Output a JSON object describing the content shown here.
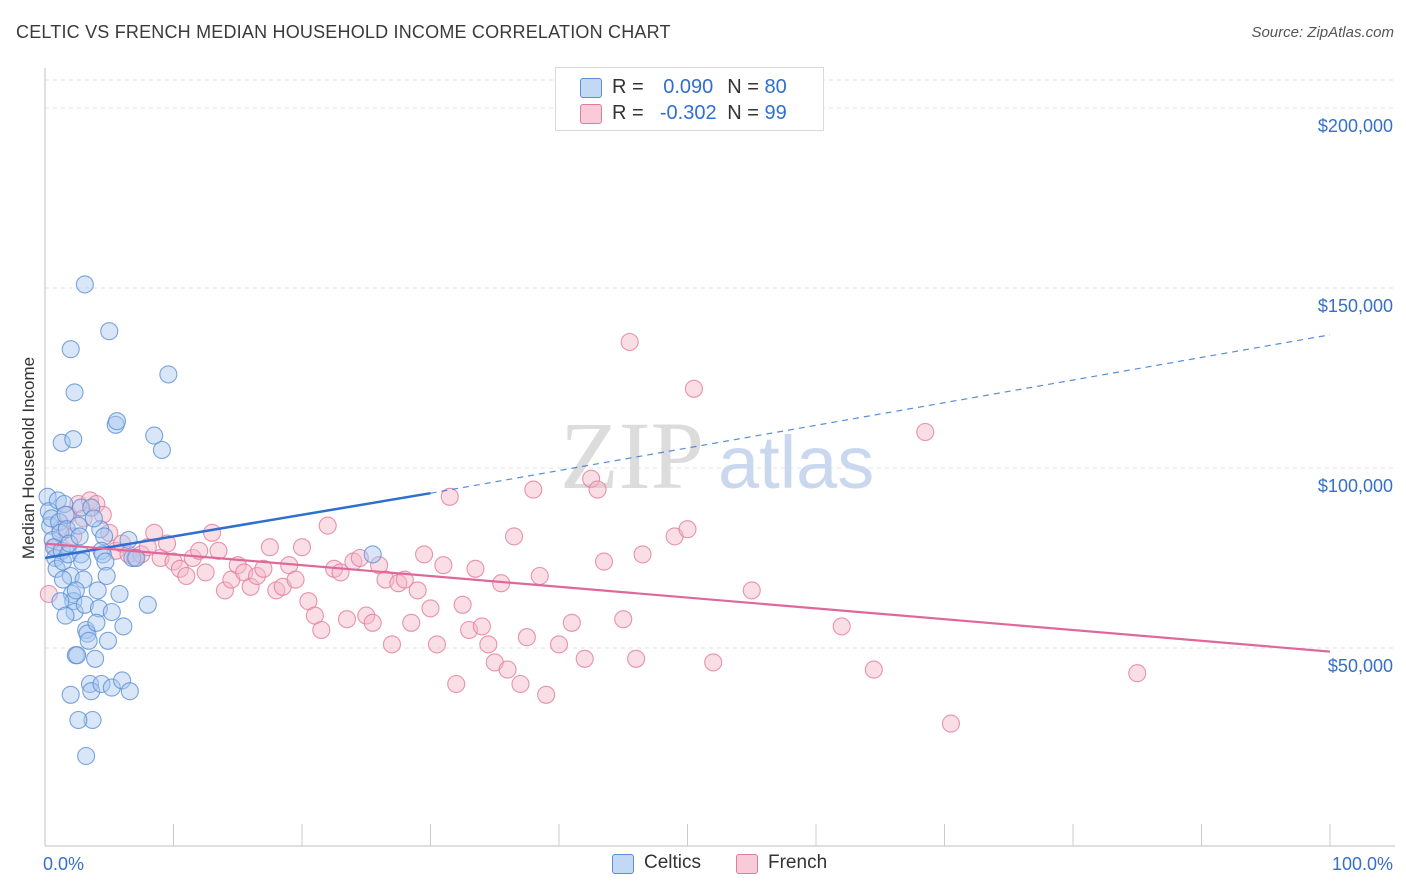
{
  "header": {
    "title": "CELTIC VS FRENCH MEDIAN HOUSEHOLD INCOME CORRELATION CHART",
    "source": "Source: ZipAtlas.com"
  },
  "watermark": {
    "zip": "ZIP",
    "atlas": "atlas"
  },
  "legend": {
    "rows": [
      {
        "r_label": "R =",
        "r_value": "0.090",
        "n_label": "N =",
        "n_value": "80",
        "color": "#a9c8f0"
      },
      {
        "r_label": "R =",
        "r_value": "-0.302",
        "n_label": "N =",
        "n_value": "99",
        "color": "#f5b5c8"
      }
    ]
  },
  "bottom_legend": {
    "items": [
      "Celtics",
      "French"
    ]
  },
  "colors": {
    "celtics_fill": "#a9c8f0",
    "celtics_stroke": "#5b8fd6",
    "celtics_line": "#2f6fd0",
    "french_fill": "#f5b5c8",
    "french_stroke": "#e27a9c",
    "french_line": "#e0679a",
    "tick_text": "#3570c8",
    "grid": "#e2e2e2"
  },
  "chart_data": {
    "type": "scatter",
    "title": "CELTIC VS FRENCH MEDIAN HOUSEHOLD INCOME CORRELATION CHART",
    "xlabel": "",
    "ylabel": "Median Household Income",
    "xlim": [
      0,
      100
    ],
    "ylim": [
      0,
      210000
    ],
    "x_tick_labels": [
      "0.0%",
      "100.0%"
    ],
    "y_ticks": [
      50000,
      100000,
      150000,
      200000
    ],
    "y_tick_labels": [
      "$50,000",
      "$100,000",
      "$150,000",
      "$200,000"
    ],
    "grid": true,
    "legend_position": "top-center",
    "series": [
      {
        "name": "Celtics",
        "r": 0.09,
        "n": 80,
        "trend": {
          "x": [
            0,
            30
          ],
          "y": [
            75000,
            93000
          ],
          "dashed_to": [
            100,
            137000
          ]
        },
        "points": [
          [
            0.2,
            92000
          ],
          [
            0.3,
            88000
          ],
          [
            0.4,
            84000
          ],
          [
            0.5,
            86000
          ],
          [
            0.6,
            80000
          ],
          [
            0.7,
            78000
          ],
          [
            0.8,
            75000
          ],
          [
            0.9,
            72000
          ],
          [
            1.0,
            91000
          ],
          [
            1.1,
            85000
          ],
          [
            1.2,
            82000
          ],
          [
            1.3,
            77000
          ],
          [
            1.4,
            74000
          ],
          [
            1.5,
            90000
          ],
          [
            1.6,
            87000
          ],
          [
            1.7,
            83000
          ],
          [
            1.8,
            76000
          ],
          [
            1.9,
            79000
          ],
          [
            2.0,
            70000
          ],
          [
            2.1,
            65000
          ],
          [
            2.2,
            63000
          ],
          [
            2.3,
            60000
          ],
          [
            2.4,
            48000
          ],
          [
            2.5,
            48000
          ],
          [
            2.6,
            84000
          ],
          [
            2.7,
            81000
          ],
          [
            2.8,
            76000
          ],
          [
            2.9,
            74000
          ],
          [
            3.0,
            69000
          ],
          [
            3.1,
            62000
          ],
          [
            3.2,
            55000
          ],
          [
            3.3,
            54000
          ],
          [
            3.4,
            52000
          ],
          [
            3.5,
            40000
          ],
          [
            3.6,
            38000
          ],
          [
            3.7,
            30000
          ],
          [
            2.0,
            133000
          ],
          [
            2.3,
            121000
          ],
          [
            1.3,
            107000
          ],
          [
            2.2,
            108000
          ],
          [
            3.1,
            151000
          ],
          [
            5.0,
            138000
          ],
          [
            5.5,
            112000
          ],
          [
            5.6,
            113000
          ],
          [
            9.6,
            126000
          ],
          [
            8.5,
            109000
          ],
          [
            9.1,
            105000
          ],
          [
            4.3,
            83000
          ],
          [
            4.6,
            81000
          ],
          [
            4.4,
            77000
          ],
          [
            4.5,
            76000
          ],
          [
            4.7,
            74000
          ],
          [
            4.8,
            70000
          ],
          [
            4.1,
            66000
          ],
          [
            4.2,
            61000
          ],
          [
            4.0,
            57000
          ],
          [
            5.2,
            60000
          ],
          [
            5.8,
            65000
          ],
          [
            6.1,
            56000
          ],
          [
            8.0,
            62000
          ],
          [
            6.5,
            80000
          ],
          [
            6.8,
            75000
          ],
          [
            7.1,
            75000
          ],
          [
            4.9,
            52000
          ],
          [
            3.9,
            47000
          ],
          [
            4.4,
            40000
          ],
          [
            5.2,
            39000
          ],
          [
            6.0,
            41000
          ],
          [
            6.6,
            38000
          ],
          [
            3.2,
            20000
          ],
          [
            2.0,
            37000
          ],
          [
            2.6,
            30000
          ],
          [
            1.2,
            63000
          ],
          [
            1.4,
            69000
          ],
          [
            1.6,
            59000
          ],
          [
            2.8,
            89000
          ],
          [
            3.6,
            89000
          ],
          [
            3.8,
            86000
          ],
          [
            25.5,
            76000
          ],
          [
            2.4,
            66000
          ]
        ]
      },
      {
        "name": "French",
        "r": -0.302,
        "n": 99,
        "trend": {
          "x": [
            0,
            100
          ],
          "y": [
            79000,
            49000
          ]
        },
        "points": [
          [
            0.3,
            65000
          ],
          [
            0.8,
            78000
          ],
          [
            1.2,
            83000
          ],
          [
            1.8,
            87000
          ],
          [
            2.2,
            81000
          ],
          [
            2.6,
            90000
          ],
          [
            3.0,
            86000
          ],
          [
            3.5,
            91000
          ],
          [
            4.0,
            90000
          ],
          [
            4.5,
            87000
          ],
          [
            5.0,
            82000
          ],
          [
            5.5,
            77000
          ],
          [
            6.0,
            79000
          ],
          [
            6.5,
            76000
          ],
          [
            7.0,
            75000
          ],
          [
            7.5,
            76000
          ],
          [
            8.0,
            78000
          ],
          [
            8.5,
            82000
          ],
          [
            9.0,
            75000
          ],
          [
            9.5,
            79000
          ],
          [
            10.0,
            74000
          ],
          [
            10.5,
            72000
          ],
          [
            11.0,
            70000
          ],
          [
            11.5,
            75000
          ],
          [
            12.0,
            77000
          ],
          [
            12.5,
            71000
          ],
          [
            13.0,
            82000
          ],
          [
            13.5,
            77000
          ],
          [
            14.0,
            66000
          ],
          [
            14.5,
            69000
          ],
          [
            15.0,
            73000
          ],
          [
            15.5,
            71000
          ],
          [
            16.0,
            67000
          ],
          [
            16.5,
            70000
          ],
          [
            17.0,
            72000
          ],
          [
            17.5,
            78000
          ],
          [
            18.0,
            66000
          ],
          [
            18.5,
            67000
          ],
          [
            19.0,
            73000
          ],
          [
            19.5,
            69000
          ],
          [
            20.0,
            78000
          ],
          [
            20.5,
            63000
          ],
          [
            21.0,
            59000
          ],
          [
            21.5,
            55000
          ],
          [
            22.0,
            84000
          ],
          [
            22.5,
            72000
          ],
          [
            23.0,
            71000
          ],
          [
            23.5,
            58000
          ],
          [
            24.0,
            74000
          ],
          [
            24.5,
            75000
          ],
          [
            25.0,
            59000
          ],
          [
            25.5,
            57000
          ],
          [
            26.0,
            73000
          ],
          [
            26.5,
            69000
          ],
          [
            27.0,
            51000
          ],
          [
            27.5,
            68000
          ],
          [
            28.0,
            69000
          ],
          [
            28.5,
            57000
          ],
          [
            29.0,
            66000
          ],
          [
            29.5,
            76000
          ],
          [
            30.0,
            61000
          ],
          [
            30.5,
            51000
          ],
          [
            31.0,
            73000
          ],
          [
            31.5,
            92000
          ],
          [
            32.0,
            40000
          ],
          [
            32.5,
            62000
          ],
          [
            33.0,
            55000
          ],
          [
            33.5,
            72000
          ],
          [
            34.0,
            56000
          ],
          [
            34.5,
            51000
          ],
          [
            35.0,
            46000
          ],
          [
            35.5,
            68000
          ],
          [
            36.0,
            44000
          ],
          [
            36.5,
            81000
          ],
          [
            37.0,
            40000
          ],
          [
            37.5,
            53000
          ],
          [
            38.0,
            94000
          ],
          [
            38.5,
            70000
          ],
          [
            39.0,
            37000
          ],
          [
            40.0,
            51000
          ],
          [
            41.0,
            57000
          ],
          [
            42.0,
            47000
          ],
          [
            42.5,
            97000
          ],
          [
            43.0,
            94000
          ],
          [
            43.5,
            74000
          ],
          [
            45.0,
            58000
          ],
          [
            45.5,
            135000
          ],
          [
            46.0,
            47000
          ],
          [
            46.5,
            76000
          ],
          [
            49.0,
            81000
          ],
          [
            50.0,
            83000
          ],
          [
            50.5,
            122000
          ],
          [
            52.0,
            46000
          ],
          [
            55.0,
            66000
          ],
          [
            62.0,
            56000
          ],
          [
            64.5,
            44000
          ],
          [
            68.5,
            110000
          ],
          [
            70.5,
            29000
          ],
          [
            85.0,
            43000
          ]
        ]
      }
    ]
  }
}
